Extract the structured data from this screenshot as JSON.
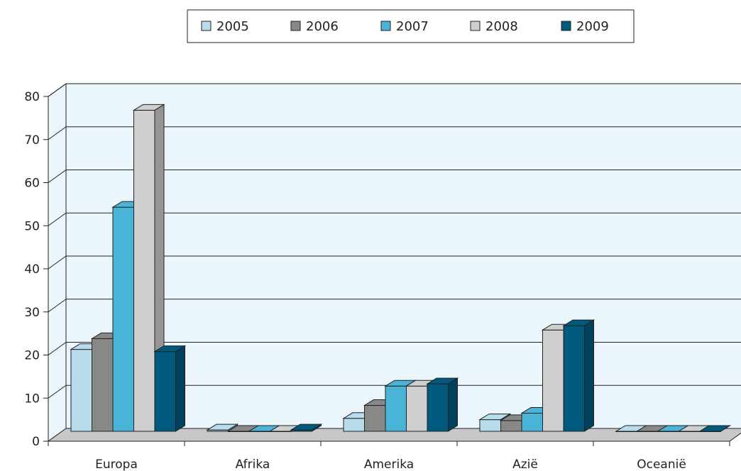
{
  "chart_data": {
    "type": "bar",
    "style": "3d-clustered-column",
    "categories": [
      "Europa",
      "Afrika",
      "Amerika",
      "Azië",
      "Oceanië"
    ],
    "series": [
      {
        "name": "2005",
        "color": "#b8dcec",
        "values": [
          19,
          0.3,
          3,
          2.7,
          0
        ]
      },
      {
        "name": "2006",
        "color": "#888888",
        "values": [
          21.5,
          0,
          6,
          2.5,
          0
        ]
      },
      {
        "name": "2007",
        "color": "#4ab3d8",
        "values": [
          52,
          0,
          10.5,
          4.2,
          0
        ]
      },
      {
        "name": "2008",
        "color": "#cfcfcf",
        "values": [
          74.5,
          0,
          10.5,
          23.5,
          0
        ]
      },
      {
        "name": "2009",
        "color": "#005a7e",
        "values": [
          18.5,
          0.3,
          11,
          24.5,
          0
        ]
      }
    ],
    "yticks": [
      "0",
      "10",
      "20",
      "30",
      "40",
      "50",
      "60",
      "70",
      "80"
    ],
    "ylim": [
      0,
      80
    ],
    "grid": true,
    "legend_position": "top-center",
    "wall_color": "#eaf6fb",
    "floor_color": "#c8c8c8"
  }
}
